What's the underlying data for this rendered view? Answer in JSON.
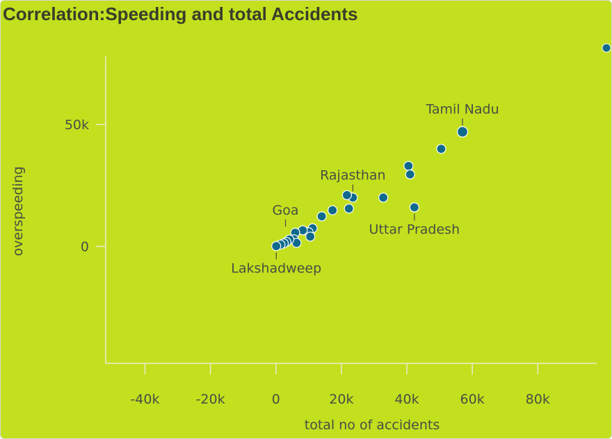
{
  "title": "Correlation:Speeding and total Accidents",
  "colors": {
    "background": "#c2e01e",
    "point_fill": "#0f6a8c",
    "point_stroke": "#ffffff",
    "axis": "#e9edd0",
    "text": "#4a4d44"
  },
  "chart_data": {
    "type": "scatter",
    "title": "Correlation:Speeding and total Accidents",
    "xlabel": "total no of accidents",
    "ylabel": "overspeeding",
    "xlim": [
      -52000,
      98000
    ],
    "ylim": [
      -48000,
      78000
    ],
    "xticks": [
      -40000,
      -20000,
      0,
      20000,
      40000,
      60000,
      80000
    ],
    "xtick_labels": [
      "-40k",
      "-20k",
      "0",
      "20k",
      "40k",
      "60k",
      "80k"
    ],
    "yticks": [
      0,
      50000
    ],
    "ytick_labels": [
      "0",
      "50k"
    ],
    "grid": false,
    "legend": "none",
    "points": [
      {
        "x": 57000,
        "y": 47000,
        "label": "Tamil Nadu",
        "label_pos": "above"
      },
      {
        "x": 50500,
        "y": 40000
      },
      {
        "x": 40500,
        "y": 33000
      },
      {
        "x": 41000,
        "y": 29500
      },
      {
        "x": 32800,
        "y": 20000
      },
      {
        "x": 42300,
        "y": 16000,
        "label": "Uttar Pradesh",
        "label_pos": "below"
      },
      {
        "x": 23500,
        "y": 20000,
        "label": "Rajasthan",
        "label_pos": "above"
      },
      {
        "x": 21700,
        "y": 21000
      },
      {
        "x": 22300,
        "y": 15500
      },
      {
        "x": 17300,
        "y": 14800
      },
      {
        "x": 14000,
        "y": 12300
      },
      {
        "x": 11200,
        "y": 7400
      },
      {
        "x": 10000,
        "y": 5800
      },
      {
        "x": 10500,
        "y": 4000
      },
      {
        "x": 8200,
        "y": 6600
      },
      {
        "x": 5900,
        "y": 5600,
        "label": "Goa",
        "label_pos": "above"
      },
      {
        "x": 5500,
        "y": 2900
      },
      {
        "x": 6300,
        "y": 1400
      },
      {
        "x": 4100,
        "y": 2800
      },
      {
        "x": 3200,
        "y": 1800
      },
      {
        "x": 2400,
        "y": 1200
      },
      {
        "x": 1400,
        "y": 700
      },
      {
        "x": 100,
        "y": 100,
        "label": "Lakshadweep",
        "label_pos": "below"
      }
    ]
  }
}
